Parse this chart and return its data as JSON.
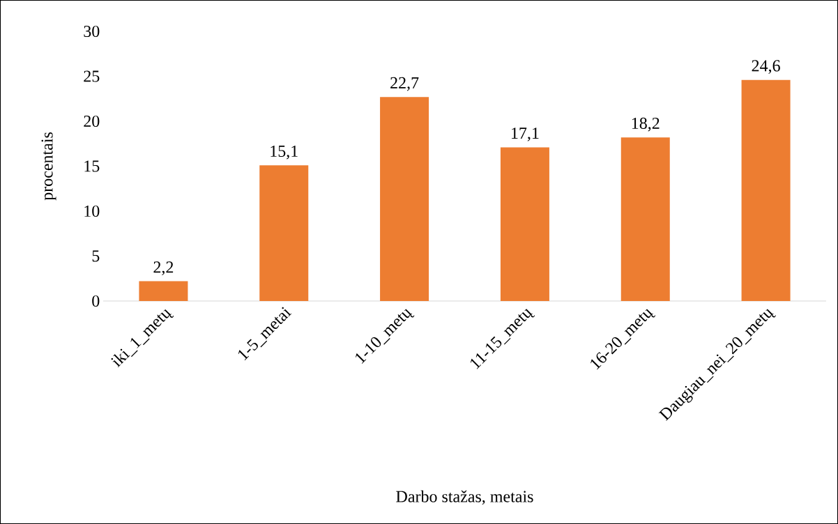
{
  "chart_data": {
    "type": "bar",
    "xlabel": "Darbo stažas, metais",
    "ylabel": "procentais",
    "categories": [
      "iki_1_metų",
      "1-5_metai",
      "1-10_metų",
      "11-15_metų",
      "16-20_metų",
      "Daugiau_nei_20_metų"
    ],
    "values": [
      2.2,
      15.1,
      22.7,
      17.1,
      18.2,
      24.6
    ],
    "value_labels": [
      "2,2",
      "15,1",
      "22,7",
      "17,1",
      "18,2",
      "24,6"
    ],
    "color": "#ed7d31",
    "ylim": [
      0,
      30
    ],
    "yticks": [
      0,
      5,
      10,
      15,
      20,
      25,
      30
    ]
  }
}
